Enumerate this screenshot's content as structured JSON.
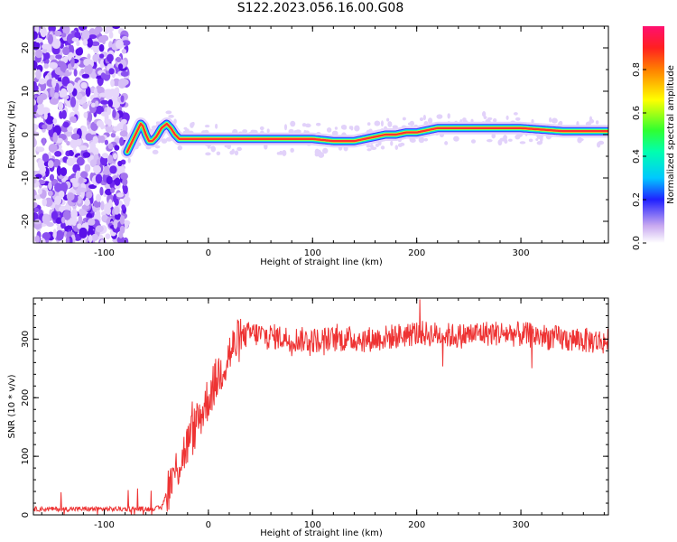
{
  "title": "S122.2023.056.16.00.G08",
  "chart_data": [
    {
      "type": "heatmap",
      "xlabel": "Height of straight line (km)",
      "ylabel": "Frequency (Hz)",
      "xlim": [
        -168,
        384
      ],
      "ylim": [
        -25,
        25
      ],
      "xticks": [
        -100,
        0,
        100,
        200,
        300
      ],
      "yticks": [
        -20,
        -10,
        0,
        10,
        20
      ],
      "colorbar": {
        "label": "Normalized spectral amplitude",
        "range": [
          0,
          1
        ],
        "ticks": [
          0.0,
          0.2,
          0.4,
          0.6,
          0.8
        ]
      },
      "ridge": {
        "x": [
          -78,
          -72,
          -68,
          -65,
          -63,
          -60,
          -57,
          -54,
          -50,
          -45,
          -40,
          -36,
          -32,
          -28,
          -20,
          0,
          50,
          100,
          120,
          140,
          160,
          170,
          180,
          190,
          200,
          220,
          260,
          300,
          340,
          384
        ],
        "y": [
          -4,
          -1,
          1,
          2.5,
          2,
          0,
          -1.5,
          -1.5,
          -0.5,
          1.5,
          2.5,
          1.5,
          0,
          -1,
          -1,
          -1,
          -1,
          -1,
          -1.5,
          -1.5,
          -0.5,
          0,
          0,
          0.5,
          0.5,
          1.5,
          1.5,
          1.5,
          0.8,
          0.8
        ]
      }
    },
    {
      "type": "line",
      "xlabel": "Height of straight line (km)",
      "ylabel": "SNR (10 * v/v)",
      "xlim": [
        -168,
        384
      ],
      "ylim": [
        0,
        370
      ],
      "xticks": [
        -100,
        0,
        100,
        200,
        300
      ],
      "yticks": [
        0,
        100,
        200,
        300
      ],
      "color": "#ee3333",
      "envelope": {
        "x": [
          -168,
          -60,
          -45,
          -40,
          -30,
          -20,
          -10,
          0,
          10,
          20,
          30,
          40,
          60,
          80,
          100,
          120,
          140,
          160,
          180,
          200,
          220,
          240,
          260,
          280,
          300,
          320,
          340,
          360,
          384
        ],
        "y": [
          10,
          10,
          12,
          40,
          80,
          120,
          160,
          200,
          240,
          275,
          300,
          310,
          305,
          300,
          298,
          300,
          300,
          300,
          305,
          310,
          308,
          305,
          310,
          310,
          308,
          305,
          300,
          298,
          295
        ]
      }
    }
  ]
}
